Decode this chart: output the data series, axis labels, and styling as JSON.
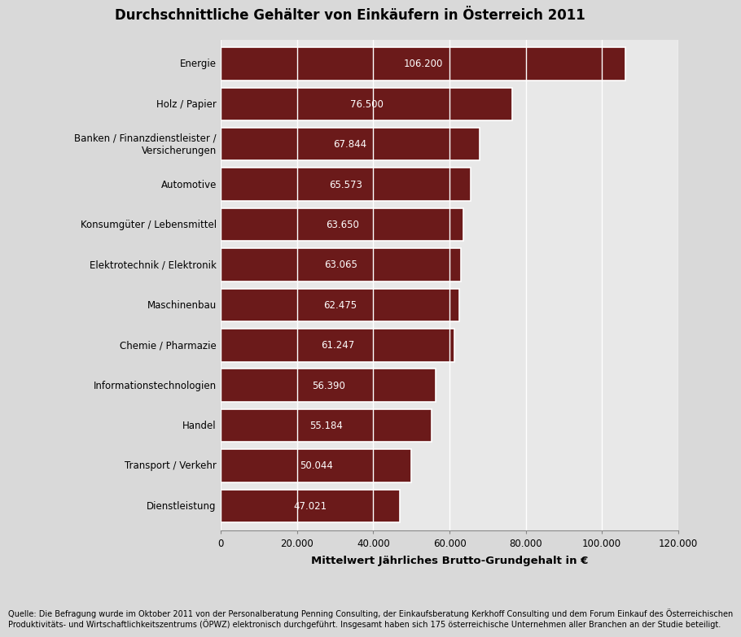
{
  "title": "Durchschnittliche Gehälter von Einkäufern in Österreich 2011",
  "categories": [
    "Energie",
    "Holz / Papier",
    "Banken / Finanzdienstleister /\nVersicherungen",
    "Automotive",
    "Konsumgüter / Lebensmittel",
    "Elektrotechnik / Elektronik",
    "Maschinenbau",
    "Chemie / Pharmazie",
    "Informationstechnologien",
    "Handel",
    "Transport / Verkehr",
    "Dienstleistung"
  ],
  "values": [
    106200,
    76500,
    67844,
    65573,
    63650,
    63065,
    62475,
    61247,
    56390,
    55184,
    50044,
    47021
  ],
  "labels": [
    "106.200",
    "76.500",
    "67.844",
    "65.573",
    "63.650",
    "63.065",
    "62.475",
    "61.247",
    "56.390",
    "55.184",
    "50.044",
    "47.021"
  ],
  "bar_color": "#6B1A1A",
  "figure_bg_color": "#D9D9D9",
  "plot_bg_color": "#E8E8E8",
  "xlabel": "Mittelwert Jährliches Brutto-Grundgehalt in €",
  "xlim": [
    0,
    120000
  ],
  "xtick_values": [
    0,
    20000,
    40000,
    60000,
    80000,
    100000,
    120000
  ],
  "xtick_labels": [
    "0",
    "20.000",
    "40.000",
    "60.000",
    "80.000",
    "100.000",
    "120.000"
  ],
  "source_text": "Quelle: Die Befragung wurde im Oktober 2011 von der Personalberatung Penning Consulting, der Einkaufsberatung Kerkhoff Consulting und dem Forum Einkauf des Österreichischen\nProduktivitäts- und Wirtschaftlichkeitszentrums (ÖPWZ) elektronisch durchgeführt. Insgesamt haben sich 175 österreichische Unternehmen aller Branchen an der Studie beteiligt.",
  "title_fontsize": 12,
  "label_fontsize": 8.5,
  "tick_fontsize": 8.5,
  "xlabel_fontsize": 9.5,
  "source_fontsize": 7
}
